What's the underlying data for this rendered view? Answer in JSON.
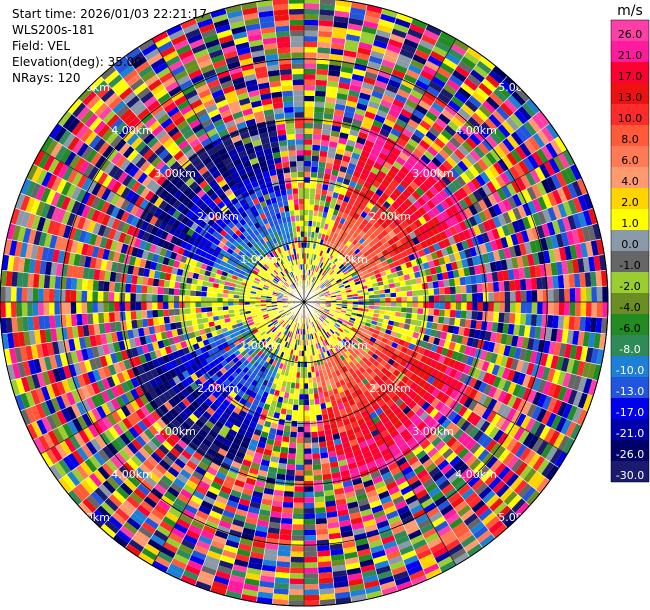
{
  "info": {
    "start_time": "Start time: 2026/01/03 22:21:17",
    "station": "WLS200s-181",
    "field": "Field: VEL",
    "elevation": "Elevation(deg): 35.00",
    "nrays": "NRays: 120"
  },
  "chart_data": {
    "type": "heatmap",
    "projection": "polar PPI",
    "field": "VEL",
    "unit": "m/s",
    "range_rings_km": [
      "1.00km",
      "2.00km",
      "3.00km",
      "4.00km",
      "5.00km"
    ],
    "range_ring_values": [
      1,
      2,
      3,
      4,
      5
    ],
    "max_range_km": 5.0,
    "n_rays": 120,
    "colorbar": {
      "unit_label": "m/s",
      "tick_labels": [
        "26.0",
        "21.0",
        "17.0",
        "13.0",
        "10.0",
        "8.0",
        "6.0",
        "4.0",
        "2.0",
        "1.0",
        "0.0",
        "-1.0",
        "-2.0",
        "-4.0",
        "-6.0",
        "-8.0",
        "-10.0",
        "-13.0",
        "-17.0",
        "-21.0",
        "-26.0",
        "-30.0"
      ],
      "colors": [
        "#ff3fa8",
        "#ff1a9e",
        "#ff0033",
        "#ee1111",
        "#ff2a2a",
        "#ff5a3a",
        "#ff7a55",
        "#ff9a70",
        "#ffd400",
        "#ffff00",
        "#8a9aa8",
        "#666666",
        "#9acd32",
        "#6b8e23",
        "#228b22",
        "#2e8b57",
        "#1e7fd6",
        "#2255dd",
        "#0000ee",
        "#0000aa",
        "#000066",
        "#1a1a6e"
      ]
    },
    "pattern": {
      "near_field_color": "#ffff00",
      "receding_sector_deg": [
        20,
        70
      ],
      "receding_sector_color": "#ff3fa8",
      "receding_sector_2_deg": [
        110,
        170
      ],
      "approaching_sector_deg": [
        200,
        250
      ],
      "approaching_sector_color": "#000080",
      "approaching_sector_2_deg": [
        290,
        350
      ],
      "coherent_range_km": 3.0
    }
  }
}
